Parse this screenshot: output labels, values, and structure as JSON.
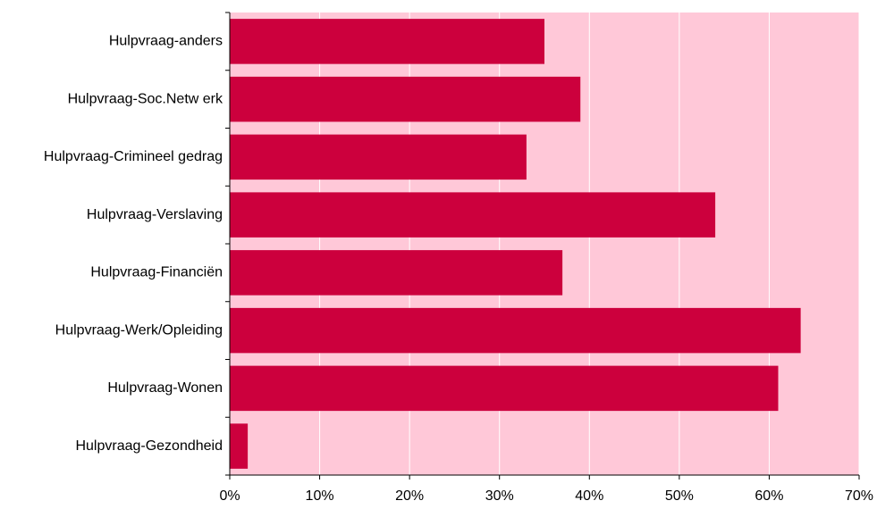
{
  "chart_data": {
    "type": "bar",
    "orientation": "horizontal",
    "categories": [
      "Hulpvraag-anders",
      "Hulpvraag-Soc.Netw erk",
      "Hulpvraag-Crimineel gedrag",
      "Hulpvraag-Verslaving",
      "Hulpvraag-Financiën",
      "Hulpvraag-Werk/Opleiding",
      "Hulpvraag-Wonen",
      "Hulpvraag-Gezondheid"
    ],
    "values": [
      35,
      39,
      33,
      54,
      37,
      63.5,
      61,
      2
    ],
    "value_unit": "%",
    "xlim": [
      0,
      70
    ],
    "x_ticks": [
      0,
      10,
      20,
      30,
      40,
      50,
      60,
      70
    ],
    "x_tick_labels": [
      "0%",
      "10%",
      "20%",
      "30%",
      "40%",
      "50%",
      "60%",
      "70%"
    ],
    "title": "",
    "xlabel": "",
    "ylabel": "",
    "grid": "vertical",
    "legend": "none",
    "colors": {
      "bar": "#cc003d",
      "plot_background": "#ffc8d8",
      "gridline": "#ffffff",
      "axis": "#000000"
    }
  }
}
